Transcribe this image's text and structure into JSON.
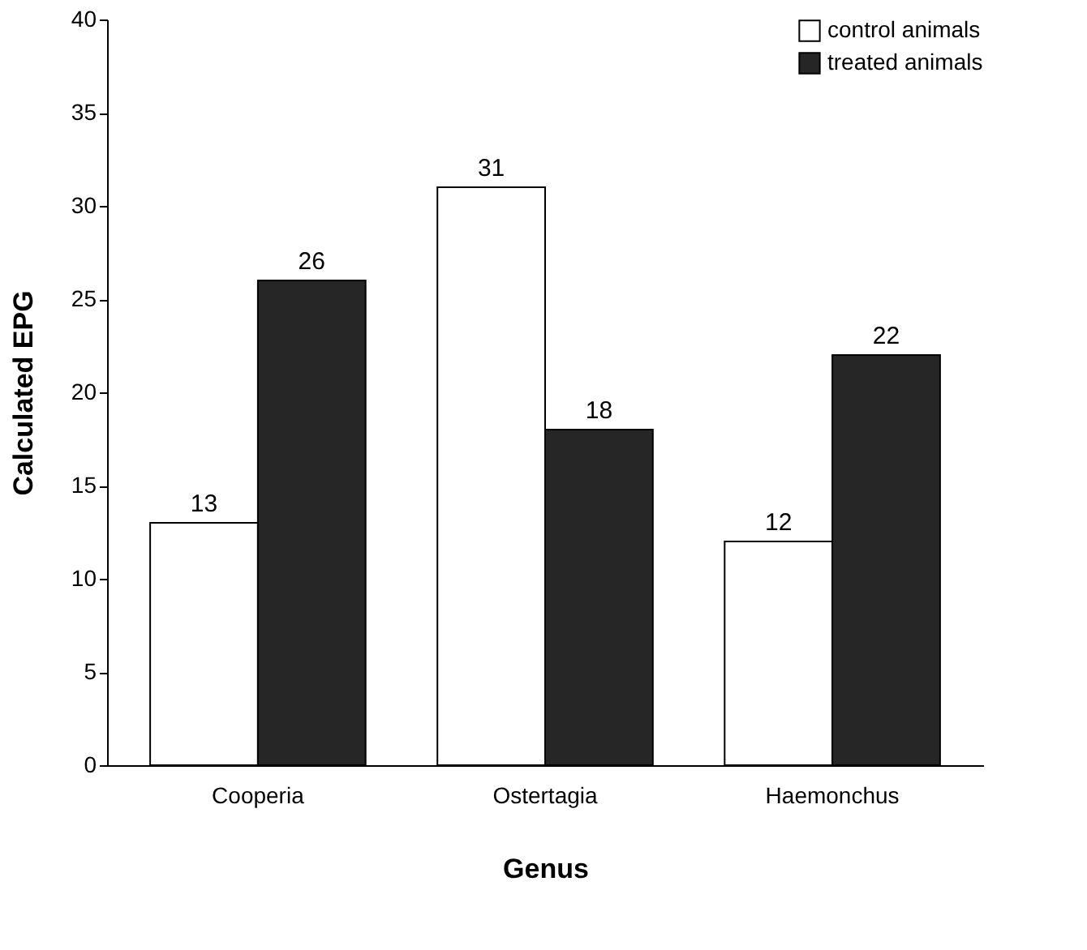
{
  "chart_data": {
    "type": "bar",
    "xlabel": "Genus",
    "ylabel": "Calculated EPG",
    "categories": [
      "Cooperia",
      "Ostertagia",
      "Haemonchus"
    ],
    "series": [
      {
        "name": "control animals",
        "color": "#ffffff",
        "values": [
          13,
          31,
          12
        ]
      },
      {
        "name": "treated animals",
        "color": "#262626",
        "values": [
          26,
          18,
          22
        ]
      }
    ],
    "ylim": [
      0,
      40
    ],
    "yticks": [
      0,
      5,
      10,
      15,
      20,
      25,
      30,
      35,
      40
    ],
    "grid": false,
    "legend": "top right",
    "data_labels": true
  }
}
